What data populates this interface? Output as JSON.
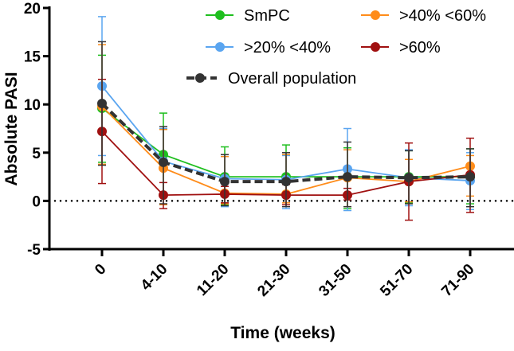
{
  "chart_data": {
    "type": "line",
    "title": "",
    "xlabel": "Time (weeks)",
    "ylabel": "Absolute PASI",
    "categories": [
      "0",
      "4-10",
      "11-20",
      "21-30",
      "31-50",
      "51-70",
      "71-90"
    ],
    "ylim": [
      -5,
      20
    ],
    "yticks": [
      -5,
      0,
      5,
      10,
      15,
      20
    ],
    "reference_line": 0,
    "legend_position": "top-right",
    "series": [
      {
        "name": "SmPC",
        "color": "#1fbf1f",
        "dashed": false,
        "values": [
          9.6,
          4.8,
          2.5,
          2.5,
          2.5,
          2.5,
          2.5
        ],
        "error_low": [
          4.0,
          0.5,
          -0.4,
          -0.4,
          -0.8,
          -0.2,
          -0.3
        ],
        "error_high": [
          15.1,
          9.1,
          5.6,
          5.8,
          5.5,
          5.2,
          5.4
        ]
      },
      {
        "name": ">20% <40%",
        "color": "#5aa5f0",
        "dashed": false,
        "values": [
          11.9,
          4.1,
          2.3,
          2.2,
          3.3,
          2.4,
          2.1
        ],
        "error_low": [
          4.7,
          0.8,
          -0.6,
          -0.8,
          -1.0,
          -0.5,
          -0.9
        ],
        "error_high": [
          19.1,
          7.5,
          4.6,
          4.7,
          7.5,
          5.3,
          5.0
        ]
      },
      {
        "name": ">40% <60%",
        "color": "#ff8c1a",
        "dashed": false,
        "values": [
          9.8,
          3.4,
          0.8,
          0.7,
          2.4,
          2.0,
          3.6
        ],
        "error_low": [
          3.8,
          -0.4,
          -0.3,
          -0.2,
          -0.6,
          -0.1,
          0.5
        ],
        "error_high": [
          16.2,
          7.4,
          4.6,
          4.8,
          5.3,
          4.3,
          4.7
        ]
      },
      {
        "name": ">60%",
        "color": "#a01010",
        "dashed": false,
        "values": [
          7.2,
          0.6,
          0.7,
          0.6,
          0.6,
          2.0,
          2.7
        ],
        "error_low": [
          1.8,
          -0.8,
          -0.2,
          -0.4,
          0.1,
          -2.0,
          -1.2
        ],
        "error_high": [
          12.6,
          1.9,
          1.5,
          1.7,
          1.3,
          6.0,
          6.5
        ]
      },
      {
        "name": "Overall population",
        "color": "#333333",
        "dashed": true,
        "values": [
          10.1,
          4.0,
          2.0,
          2.0,
          2.5,
          2.4,
          2.5
        ],
        "error_low": [
          3.7,
          -0.3,
          -0.5,
          -0.6,
          -0.6,
          -0.3,
          -0.6
        ],
        "error_high": [
          16.5,
          7.7,
          4.8,
          5.0,
          6.1,
          5.2,
          5.4
        ]
      }
    ]
  }
}
